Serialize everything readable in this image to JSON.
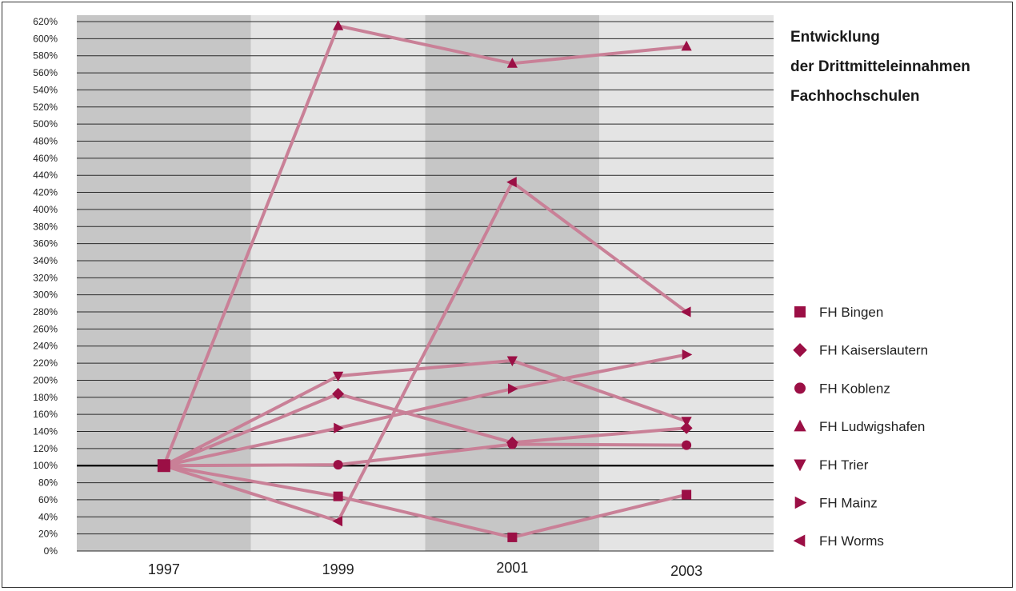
{
  "chart_data": {
    "type": "line",
    "title_lines": [
      "Entwicklung",
      "der Drittmitteleinnahmen",
      "Fachhochschulen"
    ],
    "categories": [
      "1997",
      "1999",
      "2001",
      "2003"
    ],
    "ylim": [
      0,
      620
    ],
    "ytick_step": 20,
    "ytick_suffix": "%",
    "reference_line": 100,
    "grid": true,
    "legend_position": "right",
    "colors": {
      "line": "#c98097",
      "marker": "#9b0f45",
      "band_dark": "#c6c6c6",
      "band_light": "#e4e4e4"
    },
    "series": [
      {
        "name": "FH Bingen",
        "marker": "square",
        "values": [
          100,
          64,
          16,
          66
        ]
      },
      {
        "name": "FH Kaiserslautern",
        "marker": "diamond",
        "values": [
          100,
          184,
          127,
          144
        ]
      },
      {
        "name": "FH Koblenz",
        "marker": "circle",
        "values": [
          100,
          101,
          125,
          124
        ]
      },
      {
        "name": "FH Ludwigshafen",
        "marker": "triangle-up",
        "values": [
          100,
          615,
          571,
          591
        ]
      },
      {
        "name": "FH Trier",
        "marker": "triangle-down",
        "values": [
          100,
          205,
          223,
          152
        ]
      },
      {
        "name": "FH Mainz",
        "marker": "triangle-right",
        "values": [
          100,
          144,
          190,
          230
        ]
      },
      {
        "name": "FH Worms",
        "marker": "triangle-left",
        "values": [
          100,
          35,
          432,
          280
        ]
      }
    ]
  }
}
